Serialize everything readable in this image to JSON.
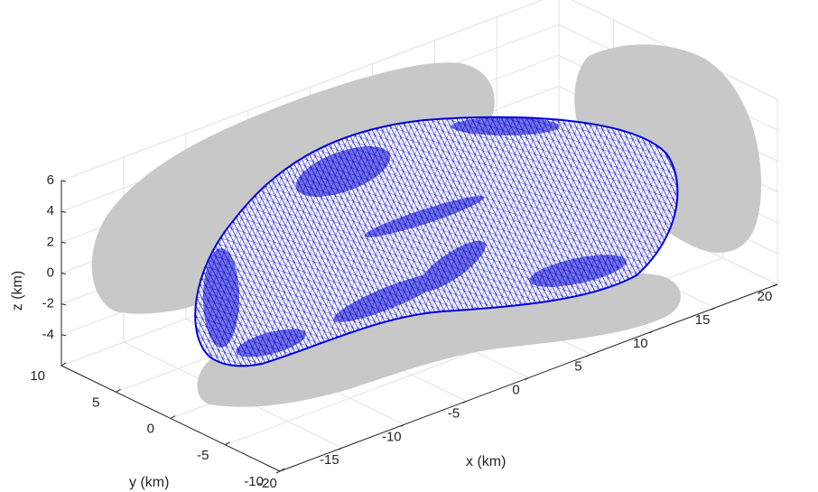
{
  "chart_data": {
    "type": "3d-mesh-surface",
    "title": "",
    "xlabel": "x (km)",
    "ylabel": "y (km)",
    "zlabel": "z (km)",
    "xlim": [
      -20,
      20
    ],
    "ylim": [
      -10,
      10
    ],
    "zlim": [
      -6,
      6
    ],
    "x_ticks": [
      "-20",
      "-15",
      "-10",
      "-5",
      "0",
      "5",
      "10",
      "15",
      "20"
    ],
    "y_ticks": [
      "-10",
      "-5",
      "0",
      "5",
      "10"
    ],
    "z_ticks": [
      "-4",
      "-2",
      "0",
      "2",
      "4",
      "6"
    ],
    "grid": true,
    "box": true,
    "mesh_color": "#0000dd",
    "shadow_color": "#c8c8c8",
    "series": [
      {
        "kind": "triangulated-mesh",
        "shape": "elongated bilobed body",
        "x_extent": [
          -18.5,
          17.5
        ],
        "y_extent": [
          -7,
          7
        ],
        "z_extent": [
          -5.5,
          5.5
        ]
      },
      {
        "kind": "projection",
        "plane": "z=-6"
      },
      {
        "kind": "projection",
        "plane": "y=10"
      },
      {
        "kind": "projection",
        "plane": "x=20"
      }
    ]
  }
}
